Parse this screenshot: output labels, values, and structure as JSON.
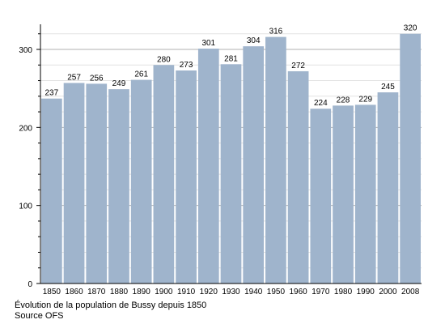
{
  "chart_data": {
    "type": "bar",
    "categories": [
      "1850",
      "1860",
      "1870",
      "1880",
      "1890",
      "1900",
      "1910",
      "1920",
      "1930",
      "1940",
      "1950",
      "1960",
      "1970",
      "1980",
      "1990",
      "2000",
      "2008"
    ],
    "values": [
      237,
      257,
      256,
      249,
      261,
      280,
      273,
      301,
      281,
      304,
      316,
      272,
      224,
      228,
      229,
      245,
      320
    ],
    "yticks": [
      0,
      100,
      200,
      300
    ],
    "ylim": [
      0,
      330
    ],
    "grid": true,
    "bar_color": "#9fb4cc",
    "grid_color": "#c8c8c8",
    "title": "",
    "xlabel": "",
    "ylabel": ""
  },
  "caption": {
    "line1": "Évolution de la population de Bussy depuis 1850",
    "line2": "Source OFS"
  }
}
